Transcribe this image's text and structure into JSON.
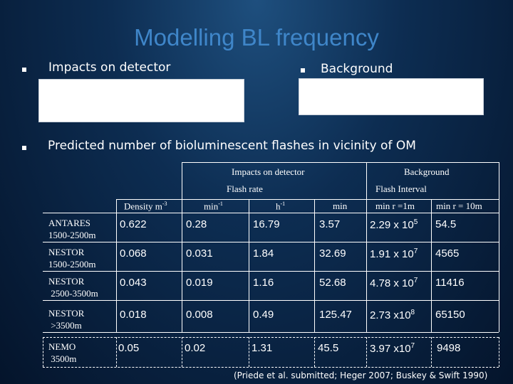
{
  "title": "Modelling BL frequency",
  "bullets": {
    "impacts": "Impacts on detector",
    "background": "Background",
    "predicted": "Predicted number of bioluminescent flashes in vicinity of OM"
  },
  "table": {
    "group_headers": {
      "impacts": "Impacts on detector",
      "background": "Background"
    },
    "sub_headers": {
      "flash_rate": "Flash rate",
      "flash_interval": "Flash Interval"
    },
    "columns": {
      "density": "Density m",
      "density_exp": "-3",
      "min": "min",
      "min_exp": "-1",
      "h": "h",
      "h_exp": "-1",
      "min_plain": "min",
      "min_r1": "min r =1m",
      "min_r10": "min r = 10m"
    },
    "rows": [
      {
        "l1": "ANTARES",
        "l2": "1500-2500m",
        "density": "0.622",
        "min": "0.28",
        "h": "16.79",
        "mn": "3.57",
        "r1": "2.29 x 10",
        "r1e": "5",
        "r10": "54.5"
      },
      {
        "l1": "NESTOR",
        "l2": "1500-2500m",
        "density": "0.068",
        "min": "0.031",
        "h": "1.84",
        "mn": "32.69",
        "r1": "1.91 x 10",
        "r1e": "7",
        "r10": "4565"
      },
      {
        "l1": "NESTOR",
        "l2": " 2500-3500m",
        "density": "0.043",
        "min": "0.019",
        "h": "1.16",
        "mn": "52.68",
        "r1": "4.78 x 10",
        "r1e": "7",
        "r10": "11416"
      },
      {
        "l1": "NESTOR",
        "l2": " >3500m",
        "density": "0.018",
        "min": "0.008",
        "h": "0.49",
        "mn": "125.47",
        "r1": "2.73 x10",
        "r1e": "8",
        "r10": "65150"
      },
      {
        "l1": "NEMO",
        "l2": " 3500m",
        "density": "0.05",
        "min": "0.02",
        "h": "1.31",
        "mn": "45.5",
        "r1": "3.97 x10",
        "r1e": "7",
        "r10": "9498"
      }
    ]
  },
  "reference": "(Priede et al. submitted; Heger 2007; Buskey & Swift 1990)"
}
